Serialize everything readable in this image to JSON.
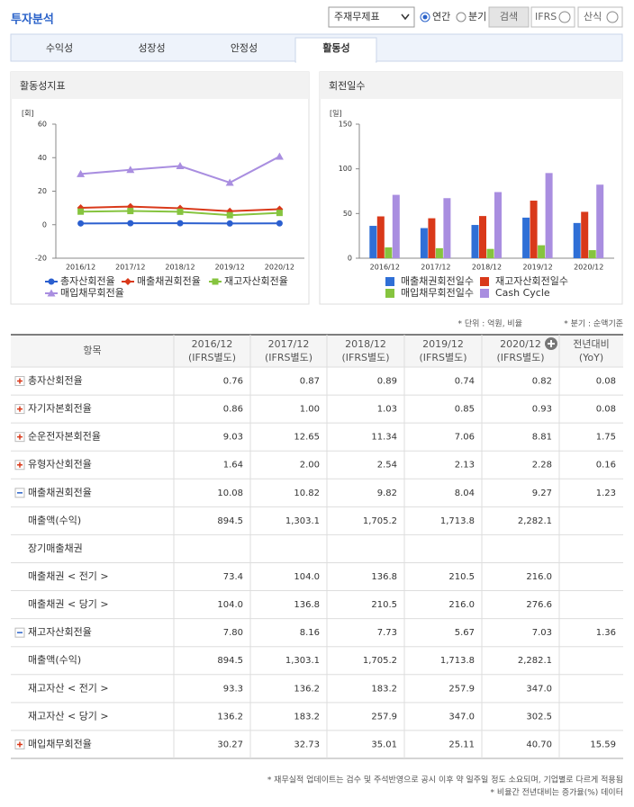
{
  "header": {
    "title": "투자분석",
    "select": "주재무제표",
    "radios": [
      "연간",
      "분기"
    ],
    "buttons": [
      "검색",
      "IFRS",
      "산식"
    ]
  },
  "tabs": [
    "수익성",
    "성장성",
    "안정성",
    "활동성"
  ],
  "chart_data": [
    {
      "type": "line",
      "title": "활동성지표",
      "y_label": "[회]",
      "categories": [
        "2016/12",
        "2017/12",
        "2018/12",
        "2019/12",
        "2020/12"
      ],
      "series": [
        {
          "name": "총자산회전율",
          "color": "#2b5fcf",
          "marker": "circle",
          "values": [
            0.76,
            0.87,
            0.89,
            0.74,
            0.82
          ]
        },
        {
          "name": "매출채권회전율",
          "color": "#d9391a",
          "marker": "diamond",
          "values": [
            10.08,
            10.82,
            9.82,
            8.04,
            9.27
          ]
        },
        {
          "name": "재고자산회전율",
          "color": "#86c43f",
          "marker": "square",
          "values": [
            7.8,
            8.16,
            7.73,
            5.67,
            7.03
          ]
        },
        {
          "name": "매입채무회전율",
          "color": "#a98ee0",
          "marker": "triangle",
          "values": [
            30.27,
            32.73,
            35.01,
            25.11,
            40.7
          ]
        }
      ],
      "ylim": [
        -20,
        60
      ],
      "yticks": [
        -20,
        0,
        20,
        40,
        60
      ],
      "grid": false
    },
    {
      "type": "bar",
      "title": "회전일수",
      "y_label": "[일]",
      "categories": [
        "2016/12",
        "2017/12",
        "2018/12",
        "2019/12",
        "2020/12"
      ],
      "series": [
        {
          "name": "매출채권회전일수",
          "color": "#2f6fd6",
          "values": [
            36.2,
            33.7,
            37.2,
            45.4,
            39.4
          ]
        },
        {
          "name": "재고자산회전일수",
          "color": "#d9391a",
          "values": [
            46.8,
            44.7,
            47.2,
            64.4,
            51.9
          ]
        },
        {
          "name": "매입채무회전일수",
          "color": "#86c43f",
          "values": [
            12.1,
            11.2,
            10.4,
            14.5,
            9.0
          ]
        },
        {
          "name": "Cash Cycle",
          "color": "#a98ee0",
          "values": [
            70.9,
            67.2,
            74.0,
            95.3,
            82.3
          ]
        }
      ],
      "ylim": [
        0,
        150
      ],
      "yticks": [
        0,
        50,
        100,
        150
      ],
      "grid": false
    }
  ],
  "unit_note": [
    "* 단위 : 억원, 비율",
    "* 분기 : 순액기준"
  ],
  "table": {
    "columns": [
      [
        "항목"
      ],
      [
        "2016/12",
        "(IFRS별도)"
      ],
      [
        "2017/12",
        "(IFRS별도)"
      ],
      [
        "2018/12",
        "(IFRS별도)"
      ],
      [
        "2019/12",
        "(IFRS별도)"
      ],
      [
        "2020/12",
        "(IFRS별도)"
      ],
      [
        "전년대비",
        "(YoY)"
      ]
    ],
    "rows": [
      [
        "총자산회전율",
        "0.76",
        "0.87",
        "0.89",
        "0.74",
        "0.82",
        "0.08"
      ],
      [
        "자기자본회전율",
        "0.86",
        "1.00",
        "1.03",
        "0.85",
        "0.93",
        "0.08"
      ],
      [
        "순운전자본회전율",
        "9.03",
        "12.65",
        "11.34",
        "7.06",
        "8.81",
        "1.75"
      ],
      [
        "유형자산회전율",
        "1.64",
        "2.00",
        "2.54",
        "2.13",
        "2.28",
        "0.16"
      ],
      [
        "매출채권회전율",
        "10.08",
        "10.82",
        "9.82",
        "8.04",
        "9.27",
        "1.23"
      ],
      [
        "매출액(수익)",
        "894.5",
        "1,303.1",
        "1,705.2",
        "1,713.8",
        "2,282.1",
        null
      ],
      [
        "장기매출채권",
        null,
        null,
        null,
        null,
        null,
        null
      ],
      [
        "매출채권 < 전기 >",
        "73.4",
        "104.0",
        "136.8",
        "210.5",
        "216.0",
        null
      ],
      [
        "매출채권 < 당기 >",
        "104.0",
        "136.8",
        "210.5",
        "216.0",
        "276.6",
        null
      ],
      [
        "재고자산회전율",
        "7.80",
        "8.16",
        "7.73",
        "5.67",
        "7.03",
        "1.36"
      ],
      [
        "매출액(수익)",
        "894.5",
        "1,303.1",
        "1,705.2",
        "1,713.8",
        "2,282.1",
        null
      ],
      [
        "재고자산 < 전기 >",
        "93.3",
        "136.2",
        "183.2",
        "257.9",
        "347.0",
        null
      ],
      [
        "재고자산 < 당기 >",
        "136.2",
        "183.2",
        "257.9",
        "347.0",
        "302.5",
        null
      ],
      [
        "매입채무회전율",
        "30.27",
        "32.73",
        "35.01",
        "25.11",
        "40.70",
        "15.59"
      ]
    ]
  },
  "footnotes": [
    "* 재무실적 업데이트는 검수 및 주석반영으로 공시 이후 약 일주일 정도 소요되며, 기업별로 다르게 적용됨",
    "* 비율간 전년대비는 증가율(%) 데이터"
  ]
}
